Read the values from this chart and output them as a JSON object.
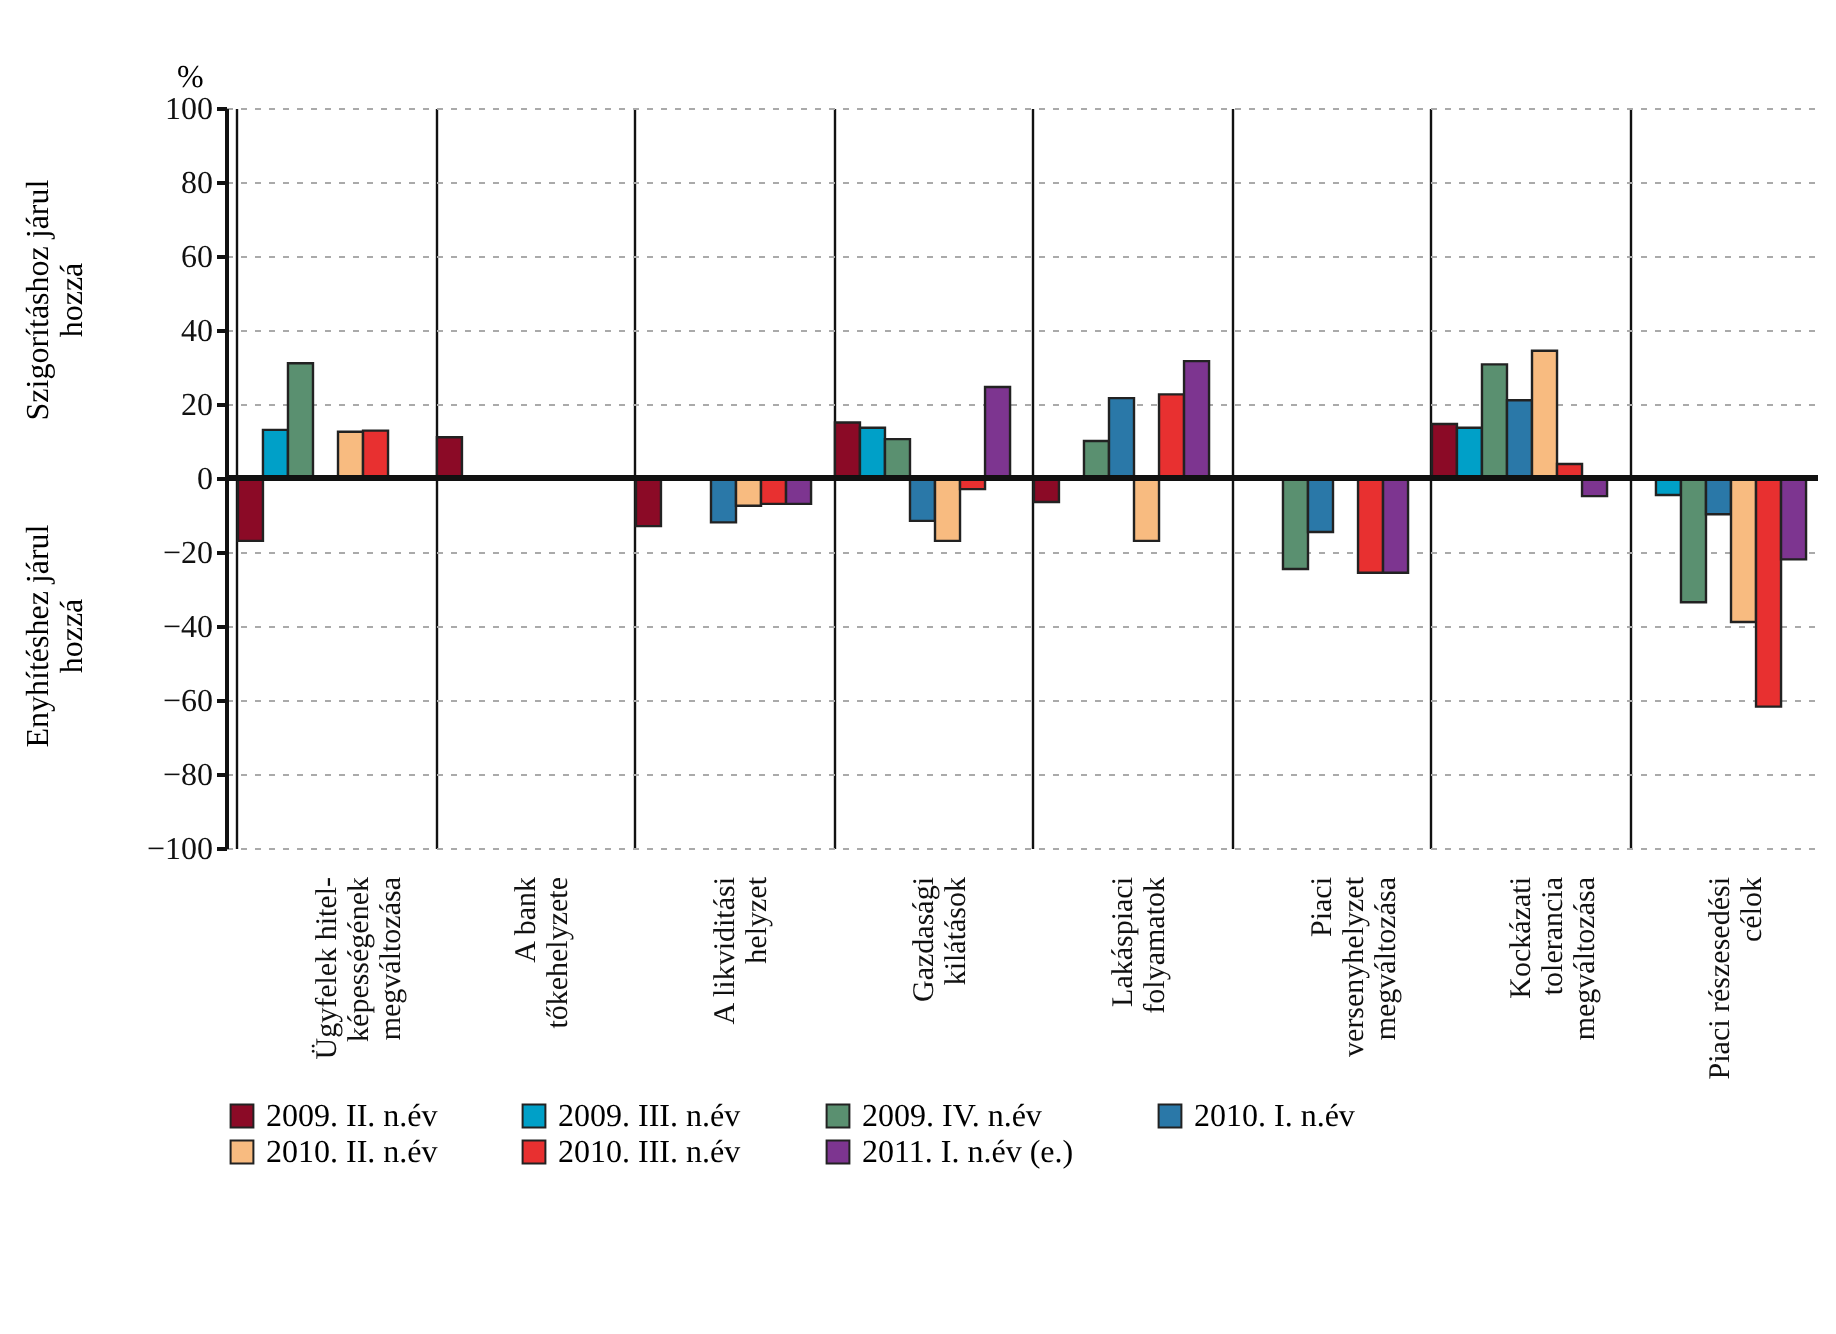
{
  "chart_data": {
    "type": "bar",
    "ylabel": "%",
    "annotations": [
      "Szigorításhoz járul hozzá",
      "Enyhítéshez járul hozzá"
    ],
    "categories": [
      "Ügyfelek hitel-\nképességének\nmegváltozása",
      "A bank\ntőkehelyzete",
      "A likviditási\nhelyzet",
      "Gazdasági\nkilátások",
      "Lakáspiaci\nfolyamatok",
      "Piaci\nversenyhelyzet\nmegváltozása",
      "Kockázati\ntolerancia\nmegváltozása",
      "Piaci részesedési\ncélok"
    ],
    "series": [
      {
        "name": "2009. II. n.év",
        "color": "#8b0a26",
        "values": [
          -17,
          11,
          -13,
          15,
          -6.5,
          null,
          14.6,
          null
        ]
      },
      {
        "name": "2009. III. n.év",
        "color": "#00a0c8",
        "values": [
          13,
          null,
          null,
          13.6,
          null,
          null,
          13.6,
          -4.6
        ]
      },
      {
        "name": "2009. IV. n.év",
        "color": "#5a9070",
        "values": [
          31,
          null,
          null,
          10.5,
          10,
          -24.6,
          30.7,
          -33.6
        ]
      },
      {
        "name": "2010. I. n.év",
        "color": "#2a78a8",
        "values": [
          null,
          null,
          -12,
          -11.6,
          21.6,
          -14.6,
          21,
          -9.8
        ]
      },
      {
        "name": "2010. II. n.év",
        "color": "#f8bb80",
        "values": [
          12.5,
          null,
          -7.5,
          -17,
          -17,
          null,
          34.4,
          -38.9
        ]
      },
      {
        "name": "2010. III. n.év",
        "color": "#e83030",
        "values": [
          12.8,
          null,
          -7,
          -3,
          22.6,
          -25.6,
          3.8,
          -61.8
        ]
      },
      {
        "name": "2011. I. n.év (e.)",
        "color": "#7d3590",
        "values": [
          null,
          null,
          -7,
          24.6,
          31.6,
          -25.6,
          -4.9,
          -22
        ]
      }
    ],
    "ylim": [
      -100,
      100
    ],
    "yticks": [
      -100,
      -80,
      -60,
      -40,
      -20,
      0,
      20,
      40,
      60,
      80,
      100
    ],
    "grid": true,
    "legend": "bottom"
  }
}
